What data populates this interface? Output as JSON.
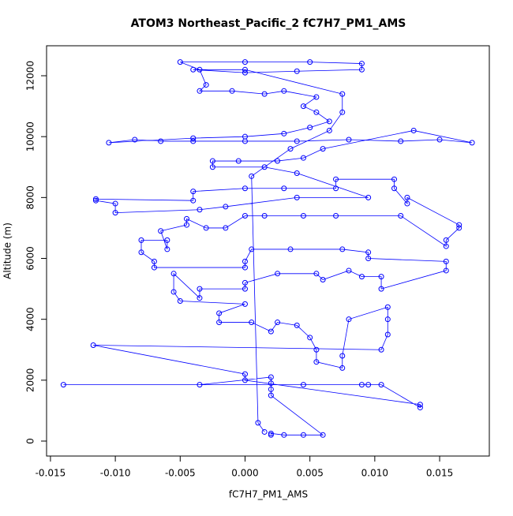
{
  "chart_data": {
    "type": "scatter",
    "title": "ATOM3 Northeast_Pacific_2 fC7H7_PM1_AMS",
    "x_label": "fC7H7_PM1_AMS",
    "y_label": "Altitude (m)",
    "color": "#0000ff",
    "connect_points": true,
    "x": [
      0.002,
      0.002,
      0.003,
      0.0045,
      0.006,
      0.002,
      0.002,
      0.002,
      0.002,
      -0.0035,
      -0.014,
      0.0045,
      0.009,
      0.0095,
      0.0105,
      0.0135,
      0.0135,
      0.0,
      0.0,
      -0.0117,
      0.0105,
      0.011,
      0.011,
      0.011,
      0.008,
      0.0075,
      0.0075,
      0.0055,
      0.0055,
      0.005,
      0.004,
      0.0025,
      0.002,
      0.0005,
      -0.002,
      -0.002,
      0.0,
      -0.005,
      -0.0055,
      -0.0055,
      -0.0035,
      -0.0035,
      0.0,
      0.0,
      0.0025,
      0.0055,
      0.006,
      0.008,
      0.009,
      0.0105,
      0.0105,
      0.0155,
      0.0155,
      0.0095,
      0.0095,
      0.0075,
      0.0035,
      0.0005,
      0.0,
      0.0,
      -0.007,
      -0.007,
      -0.008,
      -0.008,
      -0.006,
      -0.006,
      -0.0065,
      -0.0045,
      -0.0045,
      -0.003,
      -0.0015,
      0.0,
      0.0015,
      0.0045,
      0.007,
      0.012,
      0.0155,
      0.0155,
      0.0165,
      0.0165,
      0.0125,
      0.0125,
      0.0115,
      0.0115,
      0.007,
      0.007,
      0.003,
      0.0,
      -0.004,
      -0.004,
      -0.0115,
      -0.0115,
      -0.01,
      -0.01,
      -0.0035,
      -0.0015,
      0.004,
      0.0095,
      0.004,
      0.0015,
      -0.0025,
      -0.0025,
      -0.0005,
      0.0025,
      0.0045,
      0.006,
      0.013,
      0.0175,
      0.015,
      0.012,
      0.008,
      0.004,
      0.0,
      -0.004,
      -0.0065,
      -0.0085,
      -0.0105,
      -0.004,
      0.0,
      0.003,
      0.005,
      0.0065,
      0.0055,
      0.0045,
      0.0055,
      0.003,
      0.0015,
      -0.001,
      -0.0035,
      -0.003,
      -0.0035,
      -0.005,
      0.0,
      0.005,
      0.009,
      0.009,
      0.004,
      0.0,
      -0.004,
      0.0,
      0.0075,
      0.0075,
      0.0065,
      0.0035,
      0.0005,
      0.001,
      0.0015
    ],
    "values": [
      200,
      250,
      200,
      200,
      200,
      1500,
      1700,
      1900,
      2100,
      1850,
      1850,
      1850,
      1850,
      1850,
      1850,
      1100,
      1200,
      2000,
      2200,
      3150,
      3000,
      3500,
      4000,
      4400,
      4000,
      2800,
      2400,
      2600,
      3000,
      3400,
      3800,
      3900,
      3600,
      3900,
      3900,
      4200,
      4500,
      4600,
      4900,
      5500,
      4700,
      5000,
      5000,
      5200,
      5500,
      5500,
      5300,
      5600,
      5400,
      5400,
      5000,
      5600,
      5900,
      6000,
      6200,
      6300,
      6300,
      6300,
      5900,
      5700,
      5700,
      5900,
      6200,
      6600,
      6600,
      6300,
      6900,
      7100,
      7300,
      7000,
      7000,
      7400,
      7400,
      7400,
      7400,
      7400,
      6400,
      6600,
      7000,
      7100,
      8000,
      7800,
      8300,
      8600,
      8600,
      8300,
      8300,
      8300,
      8200,
      7900,
      7950,
      7900,
      7800,
      7500,
      7600,
      7700,
      8000,
      8000,
      8800,
      9000,
      9000,
      9200,
      9200,
      9200,
      9300,
      9600,
      10200,
      9800,
      9900,
      9850,
      9900,
      9850,
      9850,
      9850,
      9850,
      9900,
      9800,
      9950,
      10000,
      10100,
      10300,
      10500,
      10800,
      11000,
      11300,
      11500,
      11400,
      11500,
      11500,
      11700,
      12200,
      12450,
      12450,
      12450,
      12400,
      12200,
      12150,
      12100,
      12200,
      12200,
      11400,
      10800,
      10200,
      9600,
      8700,
      600,
      300
    ],
    "xlim": [
      -0.0153,
      0.01883
    ],
    "ylim": [
      -492,
      12985
    ],
    "xticks": [
      -0.015,
      {
        "value": -0.01,
        "label": "-0.010"
      },
      -0.005,
      {
        "value": 0,
        "label": "0.000"
      },
      0.005,
      {
        "value": 0.01,
        "label": "0.010"
      },
      0.015
    ],
    "yticks": [
      0,
      2000,
      4000,
      6000,
      8000,
      10000,
      12000
    ]
  }
}
